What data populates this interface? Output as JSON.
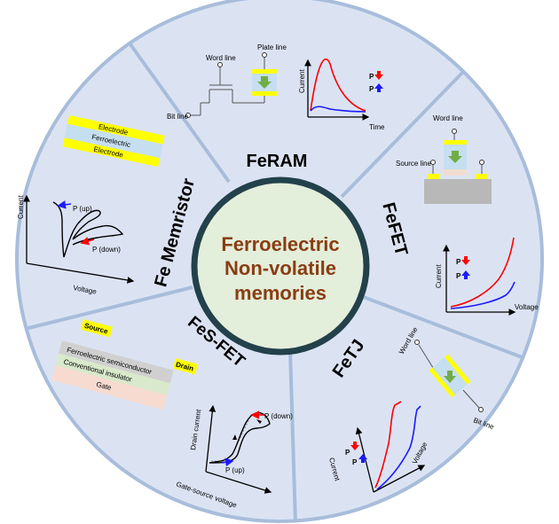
{
  "center": {
    "line1": "Ferroelectric",
    "line2": "Non-volatile",
    "line3": "memories"
  },
  "sections": {
    "feram": {
      "title": "FeRAM",
      "word_line": "Word line",
      "plate_line": "Plate line",
      "bit_line": "Bit line",
      "ylabel": "Current",
      "xlabel": "Time",
      "legend_down": "P",
      "legend_up": "P"
    },
    "fefet": {
      "title": "FeFET",
      "word_line": "Word line",
      "source_line": "Source line",
      "ylabel": "Current",
      "xlabel": "Voltage",
      "legend_down": "P",
      "legend_up": "P"
    },
    "fetj": {
      "title": "FeTJ",
      "word_line": "Word line",
      "bit_line": "Bit line",
      "ylabel": "Current",
      "xlabel": "Voltage",
      "legend_down": "P",
      "legend_up": "P"
    },
    "fesfet": {
      "title": "FeS-FET",
      "source": "Source",
      "drain": "Drain",
      "layer1": "Ferroelectric semiconductor",
      "layer2": "Conventional insulator",
      "layer3": "Gate",
      "ylabel": "Drain current",
      "xlabel": "Gate-source voltage",
      "p_down": "P (down)",
      "p_up": "P (up)"
    },
    "memristor": {
      "title": "Fe Memristor",
      "layer_top": "Electrode",
      "layer_mid": "Ferroelectric",
      "layer_bot": "Electrode",
      "ylabel": "Current",
      "xlabel": "Voltage",
      "p_up": "P (up)",
      "p_down": "P (down)"
    }
  },
  "colors": {
    "ring_fill": "#dbe3f3",
    "ring_border": "#a8bddb",
    "center_fill": "#e3eedb",
    "center_border": "#22414a",
    "center_text": "#8a3d12",
    "electrode": "#ffff00",
    "ferro": "#c5dff0",
    "red": "#ff0000",
    "blue": "#1a1aff",
    "arrow_green": "#70ad47"
  }
}
